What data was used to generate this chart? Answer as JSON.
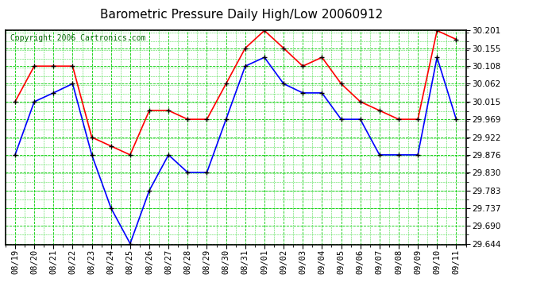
{
  "title": "Barometric Pressure Daily High/Low 20060912",
  "copyright": "Copyright 2006 Cartronics.com",
  "dates": [
    "08/19",
    "08/20",
    "08/21",
    "08/22",
    "08/23",
    "08/24",
    "08/25",
    "08/26",
    "08/27",
    "08/28",
    "08/29",
    "08/30",
    "08/31",
    "09/01",
    "09/02",
    "09/03",
    "09/04",
    "09/05",
    "09/06",
    "09/07",
    "09/08",
    "09/09",
    "09/10",
    "09/11"
  ],
  "high": [
    30.015,
    30.108,
    30.108,
    30.108,
    29.922,
    29.899,
    29.876,
    29.992,
    29.992,
    29.969,
    29.969,
    30.062,
    30.155,
    30.201,
    30.155,
    30.108,
    30.131,
    30.062,
    30.015,
    29.992,
    29.969,
    29.969,
    30.201,
    30.178
  ],
  "low": [
    29.876,
    30.015,
    30.038,
    30.062,
    29.876,
    29.737,
    29.644,
    29.783,
    29.876,
    29.83,
    29.83,
    29.969,
    30.108,
    30.131,
    30.062,
    30.038,
    30.038,
    29.969,
    29.969,
    29.876,
    29.876,
    29.876,
    30.131,
    29.969
  ],
  "ylim_min": 29.644,
  "ylim_max": 30.201,
  "yticks": [
    29.644,
    29.69,
    29.737,
    29.783,
    29.83,
    29.876,
    29.922,
    29.969,
    30.015,
    30.062,
    30.108,
    30.155,
    30.201
  ],
  "bg_color": "#ffffff",
  "plot_bg_color": "#ffffff",
  "grid_color": "#00cc00",
  "high_color": "#ff0000",
  "low_color": "#0000ff",
  "marker_color": "#000000",
  "title_fontsize": 11,
  "tick_fontsize": 7.5,
  "copyright_fontsize": 7
}
